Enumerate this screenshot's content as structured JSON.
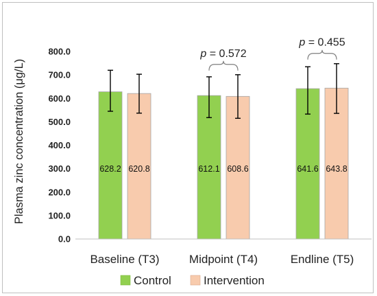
{
  "chart_data": {
    "type": "bar",
    "title": "",
    "xlabel": "",
    "ylabel": "Plasma zinc concentration (μg/L)",
    "ylim": [
      0,
      800
    ],
    "yticks": [
      "0.0",
      "100.0",
      "200.0",
      "300.0",
      "400.0",
      "500.0",
      "600.0",
      "700.0",
      "800.0"
    ],
    "grid": false,
    "legend_position": "bottom",
    "categories": [
      "Baseline (T3)",
      "Midpoint (T4)",
      "Endline (T5)"
    ],
    "series": [
      {
        "name": "Control",
        "color": "#92d050",
        "values": [
          628.2,
          612.1,
          641.6
        ],
        "value_labels": [
          "628.2",
          "612.1",
          "641.6"
        ],
        "error_low": [
          545,
          518,
          533
        ],
        "error_high": [
          720,
          692,
          735
        ]
      },
      {
        "name": "Intervention",
        "color": "#f8cbad",
        "values": [
          620.8,
          608.6,
          643.8
        ],
        "value_labels": [
          "620.8",
          "608.6",
          "643.8"
        ],
        "error_low": [
          537,
          515,
          536
        ],
        "error_high": [
          703,
          701,
          748
        ]
      }
    ],
    "annotations": [
      {
        "category_index": 1,
        "p_symbol": "p",
        "p_value": " = 0.572"
      },
      {
        "category_index": 2,
        "p_symbol": "p",
        "p_value": " = 0.455"
      }
    ]
  }
}
